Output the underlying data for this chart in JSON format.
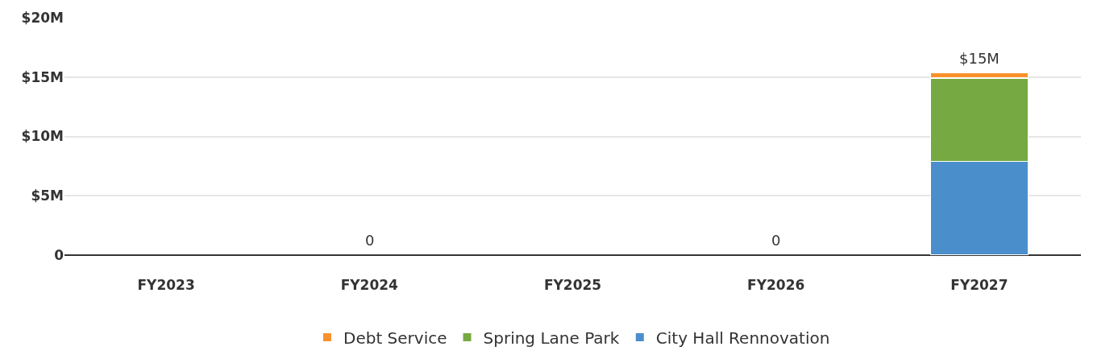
{
  "chart_data": {
    "type": "bar",
    "stacked": true,
    "categories": [
      "FY2023",
      "FY2024",
      "FY2025",
      "FY2026",
      "FY2027"
    ],
    "series": [
      {
        "name": "City Hall Rennovation",
        "color": "#4a8fcb",
        "values": [
          null,
          null,
          null,
          null,
          7900000
        ]
      },
      {
        "name": "Spring Lane Park",
        "color": "#76a941",
        "values": [
          null,
          null,
          null,
          null,
          7000000
        ]
      },
      {
        "name": "Debt Service",
        "color": "#f7922e",
        "values": [
          null,
          null,
          null,
          null,
          450000
        ]
      }
    ],
    "totals": [
      null,
      "0",
      null,
      "0",
      "$15M"
    ],
    "ylim": [
      0,
      20000000
    ],
    "yticks": [
      0,
      {
        "value": 5000000,
        "label": "$5M"
      },
      {
        "value": 10000000,
        "label": "$10M"
      },
      {
        "value": 15000000,
        "label": "$15M"
      },
      {
        "value": 20000000,
        "label": "$20M"
      }
    ],
    "grid": "y",
    "legend": "bottom"
  }
}
